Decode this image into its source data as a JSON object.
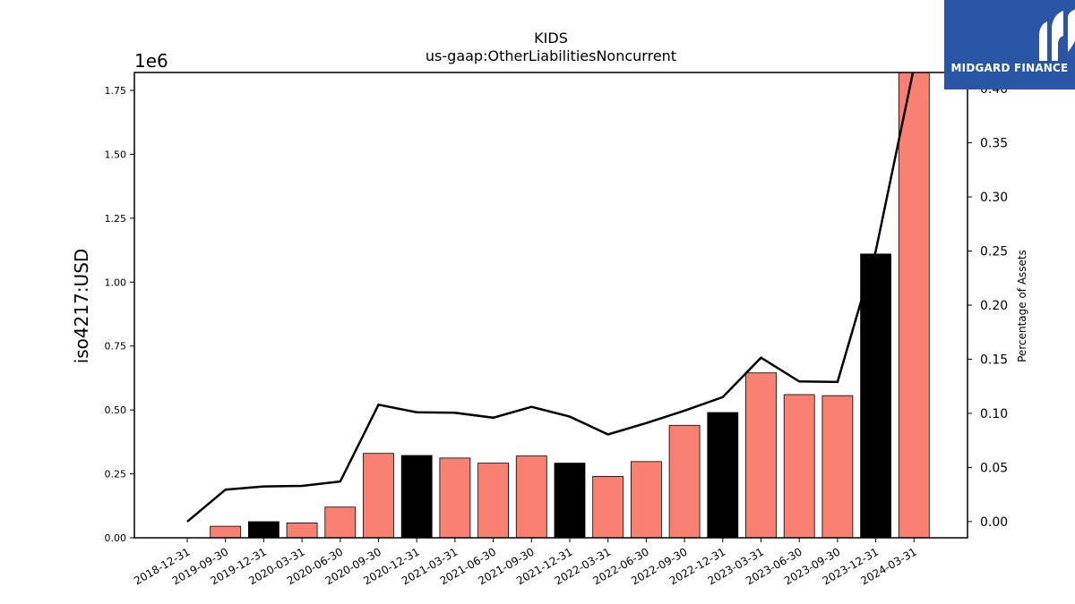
{
  "chart_data": {
    "type": "bar",
    "title": "KIDS",
    "subtitle": "us-gaap:OtherLiabilitiesNoncurrent",
    "ylabel": "iso4217:USD",
    "y2label": "Percentage of Assets",
    "y_offset_label": "1e6",
    "ylim": [
      0,
      1.82
    ],
    "y2lim": [
      -0.015,
      0.415
    ],
    "y_ticks": [
      "0.00",
      "0.25",
      "0.50",
      "0.75",
      "1.00",
      "1.25",
      "1.50",
      "1.75"
    ],
    "y2_ticks": [
      "0.00",
      "0.05",
      "0.10",
      "0.15",
      "0.20",
      "0.25",
      "0.30",
      "0.35",
      "0.40"
    ],
    "categories": [
      "2018-12-31",
      "2019-09-30",
      "2019-12-31",
      "2020-03-31",
      "2020-06-30",
      "2020-09-30",
      "2020-12-31",
      "2021-03-31",
      "2021-06-30",
      "2021-09-30",
      "2021-12-31",
      "2022-03-31",
      "2022-06-30",
      "2022-09-30",
      "2022-12-31",
      "2023-03-31",
      "2023-06-30",
      "2023-09-30",
      "2023-12-31",
      "2024-03-31"
    ],
    "series": [
      {
        "type": "bar",
        "values": [
          0,
          0.045,
          0.063,
          0.058,
          0.12,
          0.33,
          0.322,
          0.312,
          0.292,
          0.32,
          0.292,
          0.24,
          0.298,
          0.44,
          0.49,
          0.645,
          0.56,
          0.556,
          1.11,
          1.82
        ]
      },
      {
        "type": "line",
        "axis": "secondary",
        "values": [
          0.0,
          0.0295,
          0.0325,
          0.033,
          0.037,
          0.108,
          0.101,
          0.1005,
          0.096,
          0.106,
          0.097,
          0.0805,
          0.091,
          0.1025,
          0.115,
          0.1515,
          0.1295,
          0.129,
          0.25,
          0.42
        ]
      }
    ],
    "colors": {
      "bar_default": "#fa8072",
      "bar_year_end": "#000000",
      "line": "#000000"
    },
    "year_end_indices": [
      2,
      6,
      10,
      14,
      18
    ]
  },
  "logo": {
    "text": "MIDGARD FINANCE",
    "icon": "midgard-logo-icon"
  }
}
